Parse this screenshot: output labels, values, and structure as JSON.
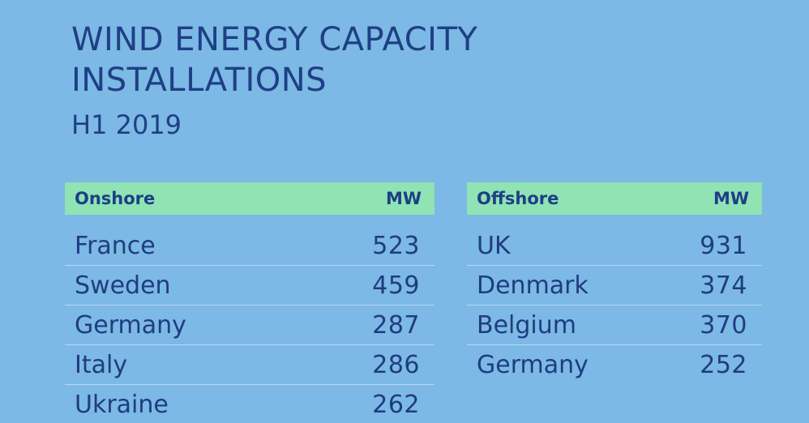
{
  "title": "WIND ENERGY CAPACITY INSTALLATIONS",
  "subtitle": "H1 2019",
  "colors": {
    "background": "#7cb9e4",
    "header_bar": "#8fe3b4",
    "text": "#1e3f86"
  },
  "chart_data": [
    {
      "type": "table",
      "columns": [
        "Onshore",
        "MW"
      ],
      "rows": [
        {
          "country": "France",
          "mw": "523"
        },
        {
          "country": "Sweden",
          "mw": "459"
        },
        {
          "country": "Germany",
          "mw": "287"
        },
        {
          "country": "Italy",
          "mw": "286"
        },
        {
          "country": "Ukraine",
          "mw": "262"
        }
      ]
    },
    {
      "type": "table",
      "columns": [
        "Offshore",
        "MW"
      ],
      "rows": [
        {
          "country": "UK",
          "mw": "931"
        },
        {
          "country": "Denmark",
          "mw": "374"
        },
        {
          "country": "Belgium",
          "mw": "370"
        },
        {
          "country": "Germany",
          "mw": "252"
        }
      ]
    }
  ]
}
